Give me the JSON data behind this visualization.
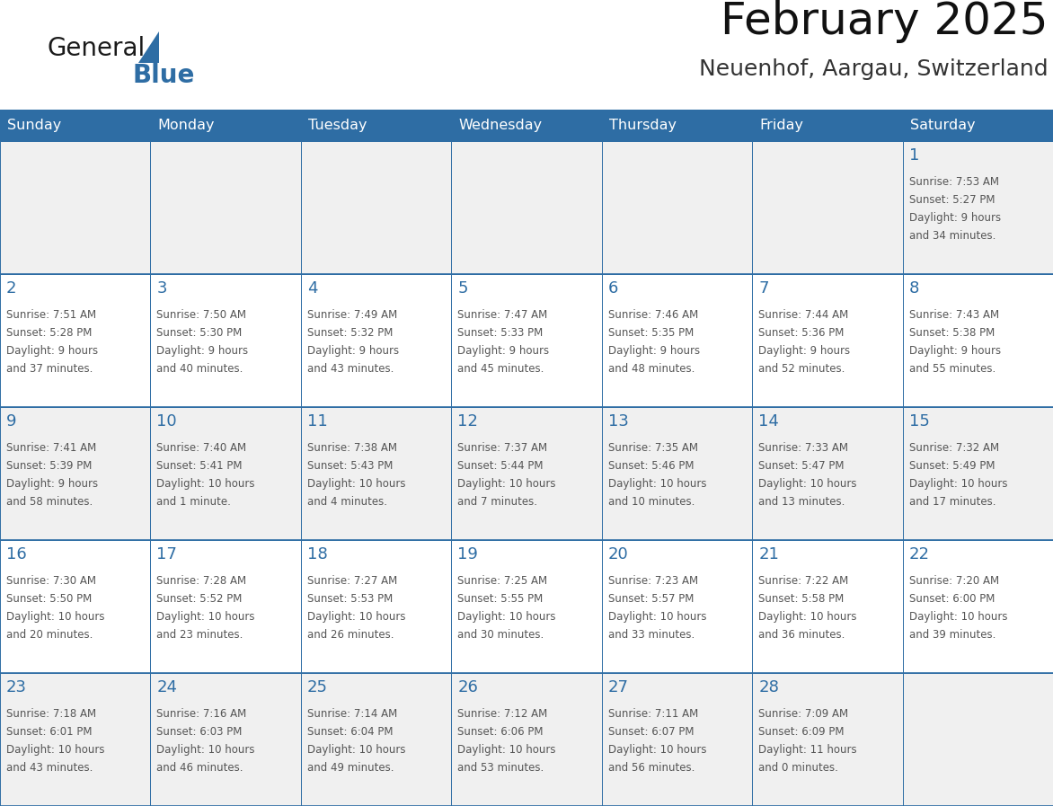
{
  "title": "February 2025",
  "subtitle": "Neuenhof, Aargau, Switzerland",
  "header_bg": "#2E6DA4",
  "header_text": "#FFFFFF",
  "cell_bg_odd": "#F0F0F0",
  "cell_bg_even": "#FFFFFF",
  "border_color": "#2E6DA4",
  "day_names": [
    "Sunday",
    "Monday",
    "Tuesday",
    "Wednesday",
    "Thursday",
    "Friday",
    "Saturday"
  ],
  "text_color": "#555555",
  "number_color": "#2E6DA4",
  "logo_general_color": "#1a1a1a",
  "logo_blue_color": "#2E6DA4",
  "figsize": [
    11.88,
    9.18
  ],
  "dpi": 100,
  "days": [
    {
      "day": 1,
      "col": 6,
      "row": 0,
      "sunrise": "7:53 AM",
      "sunset": "5:27 PM",
      "daylight": "9 hours and 34 minutes."
    },
    {
      "day": 2,
      "col": 0,
      "row": 1,
      "sunrise": "7:51 AM",
      "sunset": "5:28 PM",
      "daylight": "9 hours and 37 minutes."
    },
    {
      "day": 3,
      "col": 1,
      "row": 1,
      "sunrise": "7:50 AM",
      "sunset": "5:30 PM",
      "daylight": "9 hours and 40 minutes."
    },
    {
      "day": 4,
      "col": 2,
      "row": 1,
      "sunrise": "7:49 AM",
      "sunset": "5:32 PM",
      "daylight": "9 hours and 43 minutes."
    },
    {
      "day": 5,
      "col": 3,
      "row": 1,
      "sunrise": "7:47 AM",
      "sunset": "5:33 PM",
      "daylight": "9 hours and 45 minutes."
    },
    {
      "day": 6,
      "col": 4,
      "row": 1,
      "sunrise": "7:46 AM",
      "sunset": "5:35 PM",
      "daylight": "9 hours and 48 minutes."
    },
    {
      "day": 7,
      "col": 5,
      "row": 1,
      "sunrise": "7:44 AM",
      "sunset": "5:36 PM",
      "daylight": "9 hours and 52 minutes."
    },
    {
      "day": 8,
      "col": 6,
      "row": 1,
      "sunrise": "7:43 AM",
      "sunset": "5:38 PM",
      "daylight": "9 hours and 55 minutes."
    },
    {
      "day": 9,
      "col": 0,
      "row": 2,
      "sunrise": "7:41 AM",
      "sunset": "5:39 PM",
      "daylight": "9 hours and 58 minutes."
    },
    {
      "day": 10,
      "col": 1,
      "row": 2,
      "sunrise": "7:40 AM",
      "sunset": "5:41 PM",
      "daylight": "10 hours and 1 minute."
    },
    {
      "day": 11,
      "col": 2,
      "row": 2,
      "sunrise": "7:38 AM",
      "sunset": "5:43 PM",
      "daylight": "10 hours and 4 minutes."
    },
    {
      "day": 12,
      "col": 3,
      "row": 2,
      "sunrise": "7:37 AM",
      "sunset": "5:44 PM",
      "daylight": "10 hours and 7 minutes."
    },
    {
      "day": 13,
      "col": 4,
      "row": 2,
      "sunrise": "7:35 AM",
      "sunset": "5:46 PM",
      "daylight": "10 hours and 10 minutes."
    },
    {
      "day": 14,
      "col": 5,
      "row": 2,
      "sunrise": "7:33 AM",
      "sunset": "5:47 PM",
      "daylight": "10 hours and 13 minutes."
    },
    {
      "day": 15,
      "col": 6,
      "row": 2,
      "sunrise": "7:32 AM",
      "sunset": "5:49 PM",
      "daylight": "10 hours and 17 minutes."
    },
    {
      "day": 16,
      "col": 0,
      "row": 3,
      "sunrise": "7:30 AM",
      "sunset": "5:50 PM",
      "daylight": "10 hours and 20 minutes."
    },
    {
      "day": 17,
      "col": 1,
      "row": 3,
      "sunrise": "7:28 AM",
      "sunset": "5:52 PM",
      "daylight": "10 hours and 23 minutes."
    },
    {
      "day": 18,
      "col": 2,
      "row": 3,
      "sunrise": "7:27 AM",
      "sunset": "5:53 PM",
      "daylight": "10 hours and 26 minutes."
    },
    {
      "day": 19,
      "col": 3,
      "row": 3,
      "sunrise": "7:25 AM",
      "sunset": "5:55 PM",
      "daylight": "10 hours and 30 minutes."
    },
    {
      "day": 20,
      "col": 4,
      "row": 3,
      "sunrise": "7:23 AM",
      "sunset": "5:57 PM",
      "daylight": "10 hours and 33 minutes."
    },
    {
      "day": 21,
      "col": 5,
      "row": 3,
      "sunrise": "7:22 AM",
      "sunset": "5:58 PM",
      "daylight": "10 hours and 36 minutes."
    },
    {
      "day": 22,
      "col": 6,
      "row": 3,
      "sunrise": "7:20 AM",
      "sunset": "6:00 PM",
      "daylight": "10 hours and 39 minutes."
    },
    {
      "day": 23,
      "col": 0,
      "row": 4,
      "sunrise": "7:18 AM",
      "sunset": "6:01 PM",
      "daylight": "10 hours and 43 minutes."
    },
    {
      "day": 24,
      "col": 1,
      "row": 4,
      "sunrise": "7:16 AM",
      "sunset": "6:03 PM",
      "daylight": "10 hours and 46 minutes."
    },
    {
      "day": 25,
      "col": 2,
      "row": 4,
      "sunrise": "7:14 AM",
      "sunset": "6:04 PM",
      "daylight": "10 hours and 49 minutes."
    },
    {
      "day": 26,
      "col": 3,
      "row": 4,
      "sunrise": "7:12 AM",
      "sunset": "6:06 PM",
      "daylight": "10 hours and 53 minutes."
    },
    {
      "day": 27,
      "col": 4,
      "row": 4,
      "sunrise": "7:11 AM",
      "sunset": "6:07 PM",
      "daylight": "10 hours and 56 minutes."
    },
    {
      "day": 28,
      "col": 5,
      "row": 4,
      "sunrise": "7:09 AM",
      "sunset": "6:09 PM",
      "daylight": "11 hours and 0 minutes."
    }
  ]
}
